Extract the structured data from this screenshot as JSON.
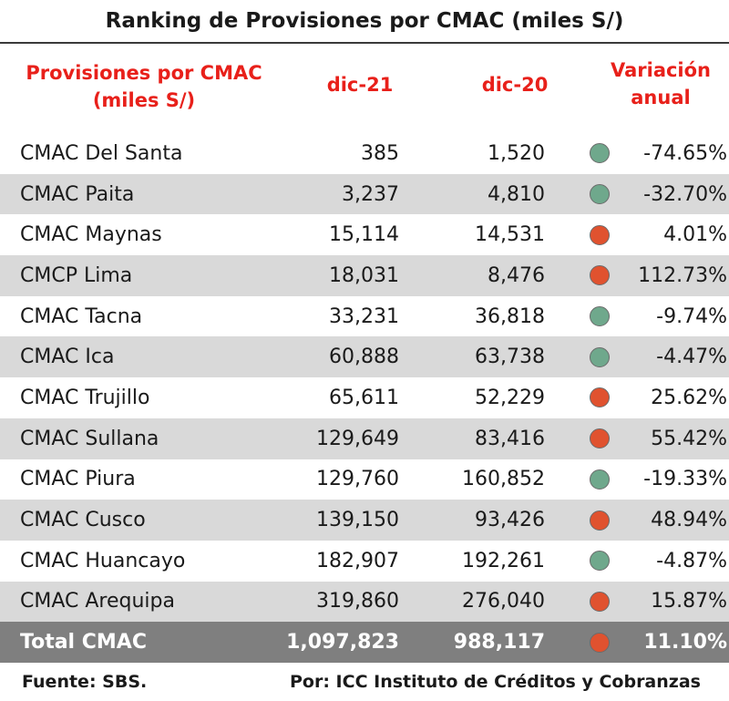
{
  "chart_data": {
    "type": "table",
    "title": "Ranking de Provisiones por CMAC (miles S/)",
    "columns": [
      "Provisiones por CMAC (miles S/)",
      "dic-21",
      "dic-20",
      "Variación anual"
    ],
    "rows": [
      {
        "name": "CMAC Del Santa",
        "dic21": "385",
        "dic20": "1,520",
        "variation": "-74.65%",
        "status": "down"
      },
      {
        "name": "CMAC Paita",
        "dic21": "3,237",
        "dic20": "4,810",
        "variation": "-32.70%",
        "status": "down"
      },
      {
        "name": "CMAC Maynas",
        "dic21": "15,114",
        "dic20": "14,531",
        "variation": "4.01%",
        "status": "up"
      },
      {
        "name": "CMCP Lima",
        "dic21": "18,031",
        "dic20": "8,476",
        "variation": "112.73%",
        "status": "up"
      },
      {
        "name": "CMAC Tacna",
        "dic21": "33,231",
        "dic20": "36,818",
        "variation": "-9.74%",
        "status": "down"
      },
      {
        "name": "CMAC Ica",
        "dic21": "60,888",
        "dic20": "63,738",
        "variation": "-4.47%",
        "status": "down"
      },
      {
        "name": "CMAC Trujillo",
        "dic21": "65,611",
        "dic20": "52,229",
        "variation": "25.62%",
        "status": "up"
      },
      {
        "name": "CMAC Sullana",
        "dic21": "129,649",
        "dic20": "83,416",
        "variation": "55.42%",
        "status": "up"
      },
      {
        "name": "CMAC Piura",
        "dic21": "129,760",
        "dic20": "160,852",
        "variation": "-19.33%",
        "status": "down"
      },
      {
        "name": "CMAC Cusco",
        "dic21": "139,150",
        "dic20": "93,426",
        "variation": "48.94%",
        "status": "up"
      },
      {
        "name": "CMAC Huancayo",
        "dic21": "182,907",
        "dic20": "192,261",
        "variation": "-4.87%",
        "status": "down"
      },
      {
        "name": "CMAC Arequipa",
        "dic21": "319,860",
        "dic20": "276,040",
        "variation": "15.87%",
        "status": "up"
      }
    ],
    "total": {
      "name": "Total CMAC",
      "dic21": "1,097,823",
      "dic20": "988,117",
      "variation": "11.10%",
      "status": "up"
    }
  },
  "header": {
    "name_line1": "Provisiones por CMAC",
    "name_line2": "(miles S/)",
    "dic21": "dic-21",
    "dic20": "dic-20",
    "var_line1": "Variación",
    "var_line2": "anual"
  },
  "footer": {
    "source": "Fuente: SBS.",
    "author": "Por: ICC Instituto de Créditos y Cobranzas"
  },
  "colors": {
    "header_text": "#e8201a",
    "status_down": "#6fa88c",
    "status_up": "#e0522f",
    "row_shade": "#d9d9d9",
    "total_row": "#7f7f7f"
  }
}
